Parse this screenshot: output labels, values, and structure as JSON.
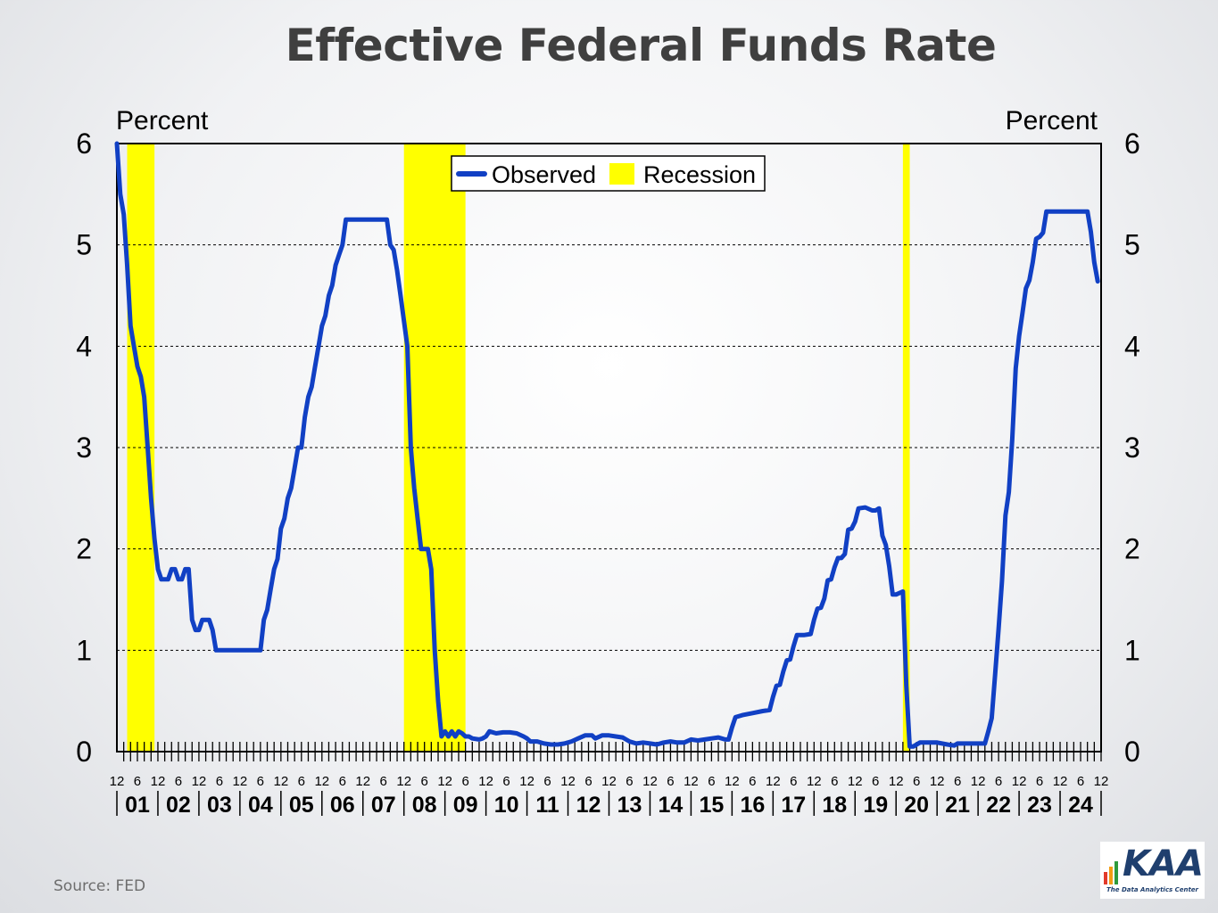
{
  "title": "Effective Federal Funds Rate",
  "source": "Source:  FED",
  "logo": {
    "text": "KAA",
    "tagline": "The Data Analytics Center"
  },
  "chart_data": {
    "type": "line",
    "y_label_left": "Percent",
    "y_label_right": "Percent",
    "ylim": [
      0,
      6
    ],
    "y_ticks": [
      0,
      1,
      2,
      3,
      4,
      5,
      6
    ],
    "grid": "horizontal dashed",
    "legend_position": "top-center",
    "x_start": "2000-12",
    "x_end": "2024-12",
    "month_tick_labels": [
      "6",
      "12"
    ],
    "year_labels": [
      "01",
      "02",
      "03",
      "04",
      "05",
      "06",
      "07",
      "08",
      "09",
      "10",
      "11",
      "12",
      "13",
      "14",
      "15",
      "16",
      "17",
      "18",
      "19",
      "20",
      "21",
      "22",
      "23",
      "24"
    ],
    "series": [
      {
        "name": "Observed",
        "color": "#1140c4",
        "points": [
          [
            "2000-12",
            6.0
          ],
          [
            "2001-01",
            5.5
          ],
          [
            "2001-02",
            5.3
          ],
          [
            "2001-03",
            4.8
          ],
          [
            "2001-04",
            4.2
          ],
          [
            "2001-05",
            4.0
          ],
          [
            "2001-06",
            3.8
          ],
          [
            "2001-07",
            3.7
          ],
          [
            "2001-08",
            3.5
          ],
          [
            "2001-09",
            3.0
          ],
          [
            "2001-10",
            2.5
          ],
          [
            "2001-11",
            2.1
          ],
          [
            "2001-12",
            1.8
          ],
          [
            "2002-01",
            1.7
          ],
          [
            "2002-03",
            1.7
          ],
          [
            "2002-04",
            1.8
          ],
          [
            "2002-05",
            1.8
          ],
          [
            "2002-06",
            1.7
          ],
          [
            "2002-07",
            1.7
          ],
          [
            "2002-08",
            1.8
          ],
          [
            "2002-09",
            1.8
          ],
          [
            "2002-10",
            1.3
          ],
          [
            "2002-11",
            1.2
          ],
          [
            "2002-12",
            1.2
          ],
          [
            "2003-01",
            1.3
          ],
          [
            "2003-03",
            1.3
          ],
          [
            "2003-04",
            1.2
          ],
          [
            "2003-05",
            1.0
          ],
          [
            "2004-06",
            1.0
          ],
          [
            "2004-07",
            1.3
          ],
          [
            "2004-08",
            1.4
          ],
          [
            "2004-09",
            1.6
          ],
          [
            "2004-10",
            1.8
          ],
          [
            "2004-11",
            1.9
          ],
          [
            "2004-12",
            2.2
          ],
          [
            "2005-01",
            2.3
          ],
          [
            "2005-02",
            2.5
          ],
          [
            "2005-03",
            2.6
          ],
          [
            "2005-04",
            2.8
          ],
          [
            "2005-05",
            3.0
          ],
          [
            "2005-06",
            3.0
          ],
          [
            "2005-07",
            3.3
          ],
          [
            "2005-08",
            3.5
          ],
          [
            "2005-09",
            3.6
          ],
          [
            "2005-10",
            3.8
          ],
          [
            "2005-11",
            4.0
          ],
          [
            "2005-12",
            4.2
          ],
          [
            "2006-01",
            4.3
          ],
          [
            "2006-02",
            4.5
          ],
          [
            "2006-03",
            4.6
          ],
          [
            "2006-04",
            4.8
          ],
          [
            "2006-05",
            4.9
          ],
          [
            "2006-06",
            5.0
          ],
          [
            "2006-07",
            5.25
          ],
          [
            "2007-07",
            5.25
          ],
          [
            "2007-08",
            5.0
          ],
          [
            "2007-09",
            4.95
          ],
          [
            "2007-10",
            4.75
          ],
          [
            "2007-11",
            4.5
          ],
          [
            "2007-12",
            4.25
          ],
          [
            "2008-01",
            4.0
          ],
          [
            "2008-02",
            3.0
          ],
          [
            "2008-03",
            2.6
          ],
          [
            "2008-04",
            2.3
          ],
          [
            "2008-05",
            2.0
          ],
          [
            "2008-06",
            2.0
          ],
          [
            "2008-07",
            2.0
          ],
          [
            "2008-08",
            1.8
          ],
          [
            "2008-09",
            1.0
          ],
          [
            "2008-10",
            0.5
          ],
          [
            "2008-11",
            0.15
          ],
          [
            "2008-12",
            0.2
          ],
          [
            "2009-01",
            0.15
          ],
          [
            "2009-02",
            0.2
          ],
          [
            "2009-03",
            0.15
          ],
          [
            "2009-04",
            0.2
          ],
          [
            "2009-05",
            0.18
          ],
          [
            "2009-06",
            0.15
          ],
          [
            "2009-07",
            0.15
          ],
          [
            "2009-08",
            0.13
          ],
          [
            "2009-10",
            0.12
          ],
          [
            "2009-11",
            0.13
          ],
          [
            "2009-12",
            0.15
          ],
          [
            "2010-01",
            0.2
          ],
          [
            "2010-03",
            0.18
          ],
          [
            "2010-05",
            0.19
          ],
          [
            "2010-07",
            0.19
          ],
          [
            "2010-09",
            0.18
          ],
          [
            "2010-11",
            0.15
          ],
          [
            "2010-12",
            0.13
          ],
          [
            "2011-01",
            0.1
          ],
          [
            "2011-03",
            0.1
          ],
          [
            "2011-05",
            0.08
          ],
          [
            "2011-07",
            0.07
          ],
          [
            "2011-09",
            0.07
          ],
          [
            "2011-11",
            0.08
          ],
          [
            "2012-01",
            0.1
          ],
          [
            "2012-03",
            0.13
          ],
          [
            "2012-05",
            0.16
          ],
          [
            "2012-07",
            0.16
          ],
          [
            "2012-08",
            0.13
          ],
          [
            "2012-10",
            0.16
          ],
          [
            "2012-12",
            0.16
          ],
          [
            "2013-02",
            0.15
          ],
          [
            "2013-04",
            0.14
          ],
          [
            "2013-06",
            0.1
          ],
          [
            "2013-08",
            0.08
          ],
          [
            "2013-10",
            0.09
          ],
          [
            "2013-12",
            0.08
          ],
          [
            "2014-02",
            0.07
          ],
          [
            "2014-04",
            0.09
          ],
          [
            "2014-06",
            0.1
          ],
          [
            "2014-08",
            0.09
          ],
          [
            "2014-10",
            0.09
          ],
          [
            "2014-12",
            0.12
          ],
          [
            "2015-02",
            0.11
          ],
          [
            "2015-04",
            0.12
          ],
          [
            "2015-06",
            0.13
          ],
          [
            "2015-08",
            0.14
          ],
          [
            "2015-10",
            0.12
          ],
          [
            "2015-11",
            0.12
          ],
          [
            "2015-12",
            0.24
          ],
          [
            "2016-01",
            0.34
          ],
          [
            "2016-03",
            0.36
          ],
          [
            "2016-06",
            0.38
          ],
          [
            "2016-09",
            0.4
          ],
          [
            "2016-11",
            0.41
          ],
          [
            "2016-12",
            0.54
          ],
          [
            "2017-01",
            0.65
          ],
          [
            "2017-02",
            0.66
          ],
          [
            "2017-03",
            0.79
          ],
          [
            "2017-04",
            0.9
          ],
          [
            "2017-05",
            0.91
          ],
          [
            "2017-06",
            1.04
          ],
          [
            "2017-07",
            1.15
          ],
          [
            "2017-09",
            1.15
          ],
          [
            "2017-11",
            1.16
          ],
          [
            "2017-12",
            1.3
          ],
          [
            "2018-01",
            1.41
          ],
          [
            "2018-02",
            1.42
          ],
          [
            "2018-03",
            1.51
          ],
          [
            "2018-04",
            1.69
          ],
          [
            "2018-05",
            1.7
          ],
          [
            "2018-06",
            1.82
          ],
          [
            "2018-07",
            1.91
          ],
          [
            "2018-08",
            1.91
          ],
          [
            "2018-09",
            1.95
          ],
          [
            "2018-10",
            2.19
          ],
          [
            "2018-11",
            2.2
          ],
          [
            "2018-12",
            2.27
          ],
          [
            "2019-01",
            2.4
          ],
          [
            "2019-03",
            2.41
          ],
          [
            "2019-05",
            2.38
          ],
          [
            "2019-06",
            2.38
          ],
          [
            "2019-07",
            2.4
          ],
          [
            "2019-08",
            2.13
          ],
          [
            "2019-09",
            2.04
          ],
          [
            "2019-10",
            1.83
          ],
          [
            "2019-11",
            1.55
          ],
          [
            "2019-12",
            1.55
          ],
          [
            "2020-02",
            1.58
          ],
          [
            "2020-03",
            0.65
          ],
          [
            "2020-04",
            0.05
          ],
          [
            "2020-05",
            0.05
          ],
          [
            "2020-07",
            0.09
          ],
          [
            "2020-09",
            0.09
          ],
          [
            "2020-12",
            0.09
          ],
          [
            "2021-03",
            0.07
          ],
          [
            "2021-05",
            0.06
          ],
          [
            "2021-06",
            0.08
          ],
          [
            "2021-09",
            0.08
          ],
          [
            "2021-12",
            0.08
          ],
          [
            "2022-02",
            0.08
          ],
          [
            "2022-03",
            0.2
          ],
          [
            "2022-04",
            0.33
          ],
          [
            "2022-05",
            0.77
          ],
          [
            "2022-06",
            1.21
          ],
          [
            "2022-07",
            1.68
          ],
          [
            "2022-08",
            2.33
          ],
          [
            "2022-09",
            2.56
          ],
          [
            "2022-10",
            3.08
          ],
          [
            "2022-11",
            3.78
          ],
          [
            "2022-12",
            4.1
          ],
          [
            "2023-01",
            4.33
          ],
          [
            "2023-02",
            4.57
          ],
          [
            "2023-03",
            4.65
          ],
          [
            "2023-04",
            4.83
          ],
          [
            "2023-05",
            5.06
          ],
          [
            "2023-06",
            5.08
          ],
          [
            "2023-07",
            5.12
          ],
          [
            "2023-08",
            5.33
          ],
          [
            "2024-08",
            5.33
          ],
          [
            "2024-09",
            5.13
          ],
          [
            "2024-10",
            4.83
          ],
          [
            "2024-11",
            4.64
          ]
        ]
      }
    ],
    "recessions": [
      {
        "name": "Recession",
        "start": "2001-03",
        "end": "2001-11"
      },
      {
        "name": "Recession",
        "start": "2007-12",
        "end": "2009-06"
      },
      {
        "name": "Recession",
        "start": "2020-02",
        "end": "2020-04"
      }
    ],
    "legend": [
      {
        "label": "Observed",
        "kind": "line",
        "color": "#1140c4"
      },
      {
        "label": "Recession",
        "kind": "box",
        "color": "#ffff00"
      }
    ]
  }
}
